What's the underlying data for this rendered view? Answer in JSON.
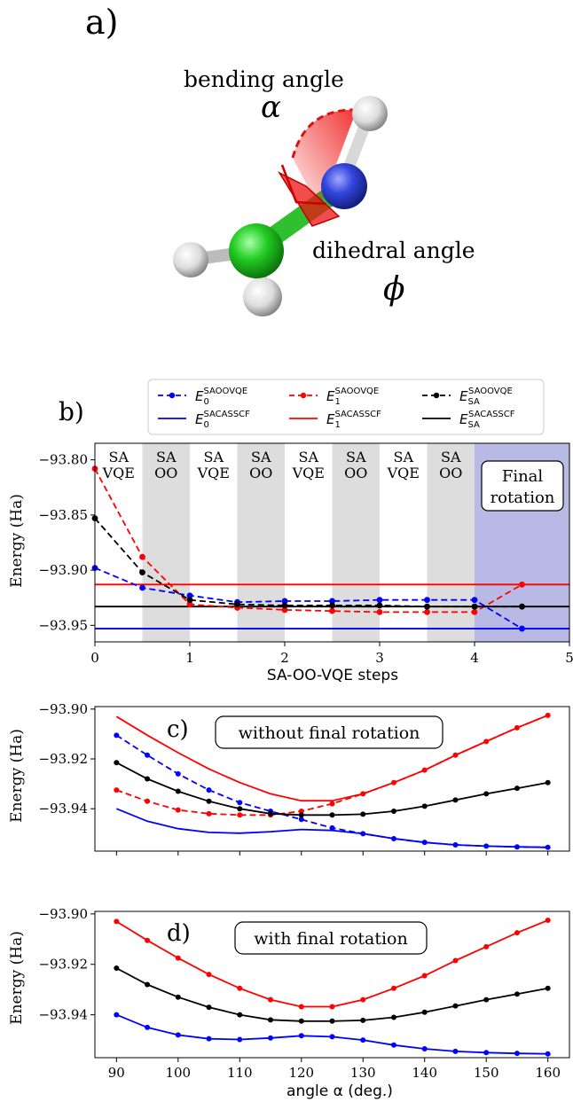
{
  "panel_a": {
    "label": "a)",
    "bending_label": "bending angle",
    "bending_symbol": "α",
    "dihedral_label": "dihedral angle",
    "dihedral_symbol": "ϕ",
    "colors": {
      "carbon": "#22cc22",
      "nitrogen": "#3344dd",
      "hydrogen": "#e8e8e8",
      "angle": "#ee1111"
    }
  },
  "chart_data": [
    {
      "panel": "b)",
      "type": "line",
      "xlabel": "SA-OO-VQE steps",
      "ylabel": "Energy (Ha)",
      "xlim": [
        0,
        5
      ],
      "ylim": [
        -93.965,
        -93.785
      ],
      "xticks": [
        0,
        1,
        2,
        3,
        4,
        5
      ],
      "yticks": [
        -93.8,
        -93.85,
        -93.9,
        -93.95
      ],
      "ytick_labels": [
        "−93.80",
        "−93.85",
        "−93.90",
        "−93.95"
      ],
      "grey_bands": [
        [
          0.5,
          1.0
        ],
        [
          1.5,
          2.0
        ],
        [
          2.5,
          3.0
        ],
        [
          3.5,
          4.0
        ]
      ],
      "final_band": [
        4.0,
        5.0
      ],
      "band_labels": [
        {
          "x": 0.25,
          "lines": [
            "SA",
            "VQE"
          ]
        },
        {
          "x": 0.75,
          "lines": [
            "SA",
            "OO"
          ]
        },
        {
          "x": 1.25,
          "lines": [
            "SA",
            "VQE"
          ]
        },
        {
          "x": 1.75,
          "lines": [
            "SA",
            "OO"
          ]
        },
        {
          "x": 2.25,
          "lines": [
            "SA",
            "VQE"
          ]
        },
        {
          "x": 2.75,
          "lines": [
            "SA",
            "OO"
          ]
        },
        {
          "x": 3.25,
          "lines": [
            "SA",
            "VQE"
          ]
        },
        {
          "x": 3.75,
          "lines": [
            "SA",
            "OO"
          ]
        }
      ],
      "final_label": [
        "Final",
        "rotation"
      ],
      "x": [
        0,
        0.5,
        1,
        1.5,
        2,
        2.5,
        3,
        3.5,
        4,
        4.5
      ],
      "series": [
        {
          "name": "E0 SAOOVQE",
          "color": "#0000ff",
          "dashed": true,
          "values": [
            -93.898,
            -93.916,
            -93.923,
            -93.929,
            -93.928,
            -93.928,
            -93.927,
            -93.927,
            -93.927,
            -93.953
          ]
        },
        {
          "name": "E1 SAOOVQE",
          "color": "#ff0000",
          "dashed": true,
          "values": [
            -93.808,
            -93.888,
            -93.931,
            -93.934,
            -93.936,
            -93.937,
            -93.938,
            -93.938,
            -93.938,
            -93.913
          ]
        },
        {
          "name": "ESA SAOOVQE",
          "color": "#000000",
          "dashed": true,
          "values": [
            -93.853,
            -93.902,
            -93.927,
            -93.931,
            -93.932,
            -93.932,
            -93.932,
            -93.933,
            -93.933,
            -93.933
          ]
        }
      ],
      "hlines": [
        {
          "name": "E0 SACASSCF",
          "color": "#0000ff",
          "value": -93.953
        },
        {
          "name": "E1 SACASSCF",
          "color": "#ff0000",
          "value": -93.913
        },
        {
          "name": "ESA SACASSCF",
          "color": "#000000",
          "value": -93.933
        }
      ],
      "legend": {
        "placement": "top",
        "entries": [
          {
            "base": "E",
            "sub": "0",
            "sup": "SAOOVQE",
            "color": "#0000ff",
            "dashed": true
          },
          {
            "base": "E",
            "sub": "1",
            "sup": "SAOOVQE",
            "color": "#ff0000",
            "dashed": true
          },
          {
            "base": "E",
            "sub": "SA",
            "sup": "SAOOVQE",
            "color": "#000000",
            "dashed": true
          },
          {
            "base": "E",
            "sub": "0",
            "sup": "SACASSCF",
            "color": "#0000ff",
            "dashed": false
          },
          {
            "base": "E",
            "sub": "1",
            "sup": "SACASSCF",
            "color": "#ff0000",
            "dashed": false
          },
          {
            "base": "E",
            "sub": "SA",
            "sup": "SACASSCF",
            "color": "#000000",
            "dashed": false
          }
        ]
      }
    },
    {
      "panel": "c)",
      "type": "line",
      "annotation": "without final rotation",
      "ylabel": "Energy (Ha)",
      "xlim": [
        86.5,
        163.5
      ],
      "ylim": [
        -93.957,
        -93.899
      ],
      "yticks": [
        -93.9,
        -93.92,
        -93.94
      ],
      "ytick_labels": [
        "−93.90",
        "−93.92",
        "−93.94"
      ],
      "x": [
        90,
        95,
        100,
        105,
        110,
        115,
        120,
        125,
        130,
        135,
        140,
        145,
        150,
        155,
        160
      ],
      "series": [
        {
          "name": "E0 SAOOVQE",
          "color": "#0000ff",
          "dashed": true,
          "markers": true,
          "values": [
            -93.9105,
            -93.9185,
            -93.926,
            -93.9325,
            -93.9375,
            -93.941,
            -93.9443,
            -93.9477,
            -93.95,
            -93.952,
            -93.9535,
            -93.9545,
            -93.955,
            -93.9553,
            -93.9555
          ]
        },
        {
          "name": "E1 SAOOVQE",
          "color": "#ff0000",
          "dashed": true,
          "markers": true,
          "values": [
            -93.9325,
            -93.937,
            -93.9405,
            -93.942,
            -93.9425,
            -93.9425,
            -93.941,
            -93.938,
            -93.934,
            -93.9295,
            -93.9245,
            -93.9185,
            -93.913,
            -93.9075,
            -93.9025
          ]
        },
        {
          "name": "ESA SAOOVQE",
          "color": "#000000",
          "dashed": false,
          "markers": true,
          "values": [
            -93.9215,
            -93.928,
            -93.933,
            -93.937,
            -93.94,
            -93.942,
            -93.9425,
            -93.9425,
            -93.9422,
            -93.941,
            -93.939,
            -93.9365,
            -93.934,
            -93.9318,
            -93.9295
          ]
        },
        {
          "name": "E0 SACASSCF",
          "color": "#0000ff",
          "dashed": false,
          "markers": false,
          "values": [
            -93.94,
            -93.945,
            -93.948,
            -93.9495,
            -93.9498,
            -93.9492,
            -93.9483,
            -93.9487,
            -93.95,
            -93.952,
            -93.9535,
            -93.9545,
            -93.955,
            -93.9553,
            -93.9555
          ]
        },
        {
          "name": "E1 SACASSCF",
          "color": "#ff0000",
          "dashed": false,
          "markers": false,
          "values": [
            -93.903,
            -93.9105,
            -93.9175,
            -93.924,
            -93.9295,
            -93.934,
            -93.9368,
            -93.9368,
            -93.934,
            -93.9295,
            -93.9245,
            -93.9185,
            -93.913,
            -93.9075,
            -93.9025
          ]
        }
      ]
    },
    {
      "panel": "d)",
      "type": "line",
      "annotation": "with final rotation",
      "xlabel": "angle α (deg.)",
      "ylabel": "Energy (Ha)",
      "xlim": [
        86.5,
        163.5
      ],
      "ylim": [
        -93.957,
        -93.899
      ],
      "xticks": [
        90,
        100,
        110,
        120,
        130,
        140,
        150,
        160
      ],
      "yticks": [
        -93.9,
        -93.92,
        -93.94
      ],
      "ytick_labels": [
        "−93.90",
        "−93.92",
        "−93.94"
      ],
      "x": [
        90,
        95,
        100,
        105,
        110,
        115,
        120,
        125,
        130,
        135,
        140,
        145,
        150,
        155,
        160
      ],
      "series": [
        {
          "name": "E0",
          "color": "#0000ff",
          "dashed": false,
          "markers": true,
          "values": [
            -93.94,
            -93.945,
            -93.948,
            -93.9495,
            -93.9498,
            -93.9492,
            -93.9483,
            -93.9487,
            -93.95,
            -93.952,
            -93.9535,
            -93.9545,
            -93.955,
            -93.9553,
            -93.9555
          ]
        },
        {
          "name": "E1",
          "color": "#ff0000",
          "dashed": false,
          "markers": true,
          "values": [
            -93.903,
            -93.9105,
            -93.9175,
            -93.924,
            -93.9295,
            -93.934,
            -93.9368,
            -93.9368,
            -93.934,
            -93.9295,
            -93.9245,
            -93.9185,
            -93.913,
            -93.9075,
            -93.9025
          ]
        },
        {
          "name": "ESA",
          "color": "#000000",
          "dashed": false,
          "markers": true,
          "values": [
            -93.9215,
            -93.928,
            -93.933,
            -93.937,
            -93.94,
            -93.942,
            -93.9425,
            -93.9425,
            -93.9422,
            -93.941,
            -93.939,
            -93.9365,
            -93.934,
            -93.9318,
            -93.9295
          ]
        }
      ]
    }
  ]
}
